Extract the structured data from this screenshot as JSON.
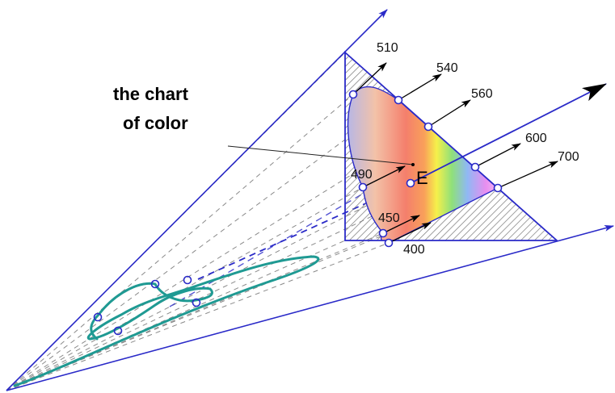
{
  "title": {
    "line1": "the chart",
    "line2": "of color"
  },
  "point_label": "E",
  "wavelength_labels": {
    "w400": "400",
    "w450": "450",
    "w490": "490",
    "w510": "510",
    "w540": "540",
    "w560": "560",
    "w600": "600",
    "w700": "700"
  },
  "colors": {
    "axis": "#2a2ac8",
    "curve": "#1f9a93",
    "triangle": "#2a2ac8",
    "arrow": "#000000",
    "hatch": "#777777",
    "dashed": "#8a8a8a"
  },
  "icons": {
    "arrowheads": "arrow-icon",
    "markers": "circle-marker-icon"
  }
}
